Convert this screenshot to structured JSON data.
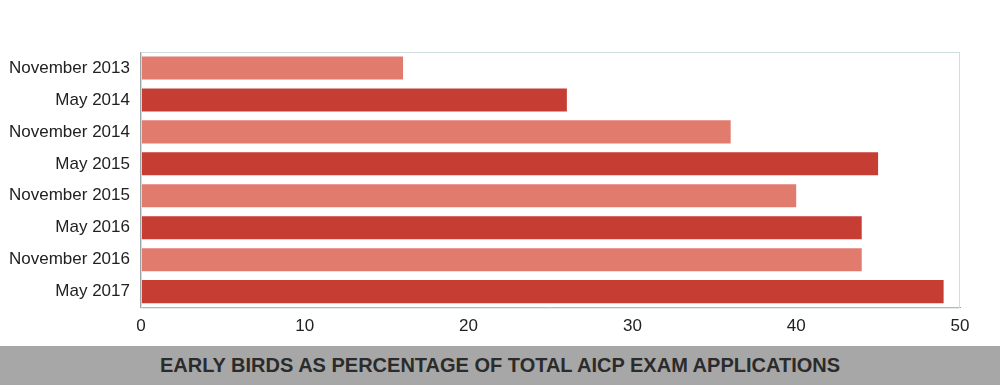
{
  "chart_data": {
    "type": "bar",
    "orientation": "horizontal",
    "title": "EARLY BIRDS AS PERCENTAGE OF TOTAL AICP EXAM APPLICATIONS",
    "categories": [
      "November 2013",
      "May 2014",
      "November 2014",
      "May 2015",
      "November 2015",
      "May 2016",
      "November 2016",
      "May 2017"
    ],
    "values": [
      16,
      26,
      36,
      45,
      40,
      44,
      44,
      49
    ],
    "colors": [
      "#e07b6e",
      "#c63d33",
      "#e07b6e",
      "#c63d33",
      "#e07b6e",
      "#c63d33",
      "#e07b6e",
      "#c63d33"
    ],
    "xlim": [
      0,
      50
    ],
    "xticks": [
      0,
      10,
      20,
      30,
      40,
      50
    ],
    "grid": false
  }
}
